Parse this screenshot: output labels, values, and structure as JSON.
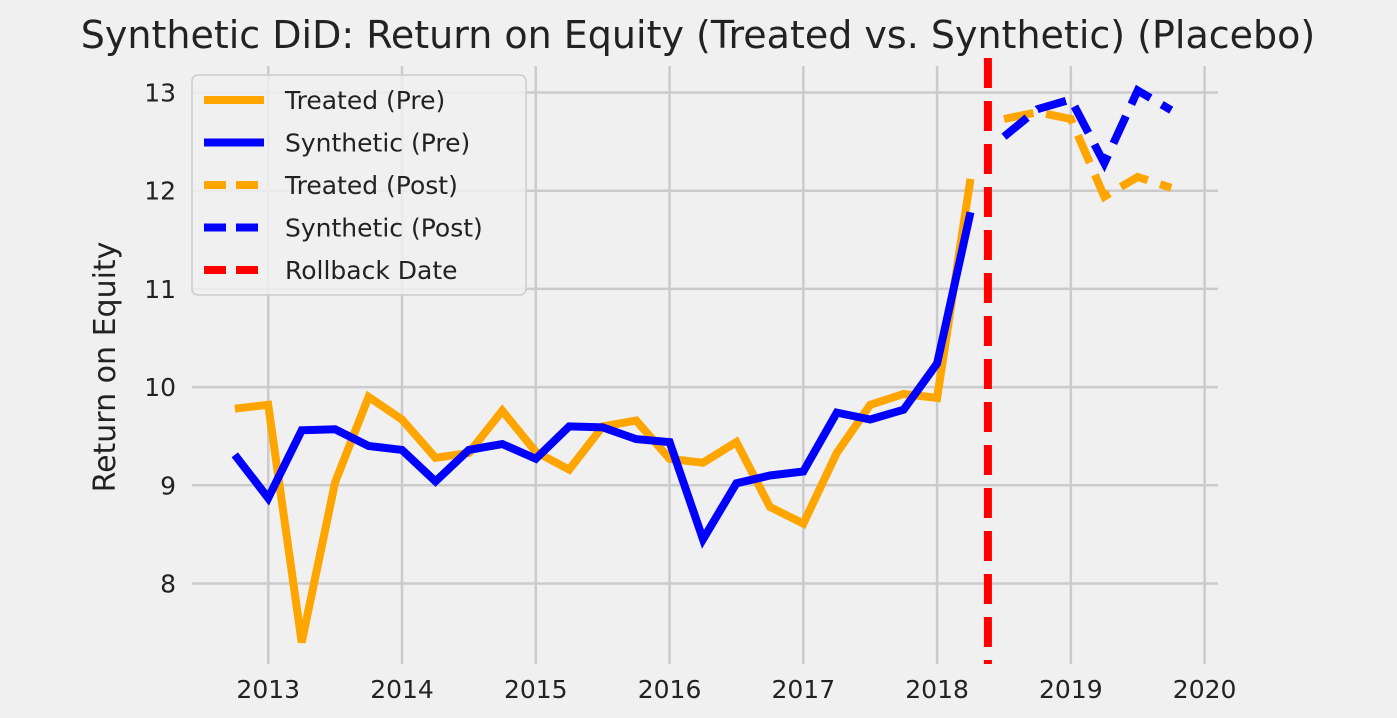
{
  "chart_data": {
    "type": "line",
    "title": "Synthetic DiD: Return on Equity (Treated vs. Synthetic) (Placebo)",
    "xlabel": "",
    "ylabel": "Return on Equity",
    "xlim": [
      2012.43,
      2020.1
    ],
    "ylim": [
      7.18,
      13.27
    ],
    "xticks": [
      2013,
      2014,
      2015,
      2016,
      2017,
      2018,
      2019,
      2020
    ],
    "yticks": [
      8,
      9,
      10,
      11,
      12,
      13
    ],
    "grid": true,
    "legend_position": "top-left",
    "colors": {
      "treated": "#ffa500",
      "synthetic": "#0000ff",
      "rollback": "#ff0000"
    },
    "series": [
      {
        "name": "Treated (Pre)",
        "style": "solid",
        "color": "#ffa500",
        "x": [
          2012.75,
          2013.0,
          2013.25,
          2013.5,
          2013.75,
          2014.0,
          2014.25,
          2014.5,
          2014.75,
          2015.0,
          2015.25,
          2015.5,
          2015.75,
          2016.0,
          2016.25,
          2016.5,
          2016.75,
          2017.0,
          2017.25,
          2017.5,
          2017.75,
          2018.0,
          2018.25
        ],
        "y": [
          9.78,
          9.82,
          7.4,
          9.03,
          9.9,
          9.67,
          9.28,
          9.33,
          9.76,
          9.34,
          9.16,
          9.6,
          9.66,
          9.27,
          9.23,
          9.44,
          8.78,
          8.61,
          9.33,
          9.82,
          9.93,
          9.89,
          12.12
        ]
      },
      {
        "name": "Synthetic (Pre)",
        "style": "solid",
        "color": "#0000ff",
        "x": [
          2012.75,
          2013.0,
          2013.25,
          2013.5,
          2013.75,
          2014.0,
          2014.25,
          2014.5,
          2014.75,
          2015.0,
          2015.25,
          2015.5,
          2015.75,
          2016.0,
          2016.25,
          2016.5,
          2016.75,
          2017.0,
          2017.25,
          2017.5,
          2017.75,
          2018.0,
          2018.25
        ],
        "y": [
          9.31,
          8.87,
          9.56,
          9.57,
          9.4,
          9.36,
          9.04,
          9.36,
          9.42,
          9.27,
          9.6,
          9.59,
          9.47,
          9.44,
          8.45,
          9.02,
          9.1,
          9.14,
          9.74,
          9.67,
          9.77,
          10.24,
          11.78
        ]
      },
      {
        "name": "Treated (Post)",
        "style": "dashed",
        "color": "#ffa500",
        "x": [
          2018.5,
          2018.75,
          2019.0,
          2019.25,
          2019.5,
          2019.75
        ],
        "y": [
          12.73,
          12.8,
          12.73,
          11.94,
          12.14,
          12.03
        ]
      },
      {
        "name": "Synthetic (Post)",
        "style": "dashed",
        "color": "#0000ff",
        "x": [
          2018.5,
          2018.75,
          2019.0,
          2019.25,
          2019.5,
          2019.75
        ],
        "y": [
          12.55,
          12.83,
          12.93,
          12.28,
          13.02,
          12.82
        ]
      }
    ],
    "vlines": [
      {
        "name": "Rollback Date",
        "x": 2018.38,
        "style": "dashed",
        "color": "#ff0000"
      }
    ]
  }
}
